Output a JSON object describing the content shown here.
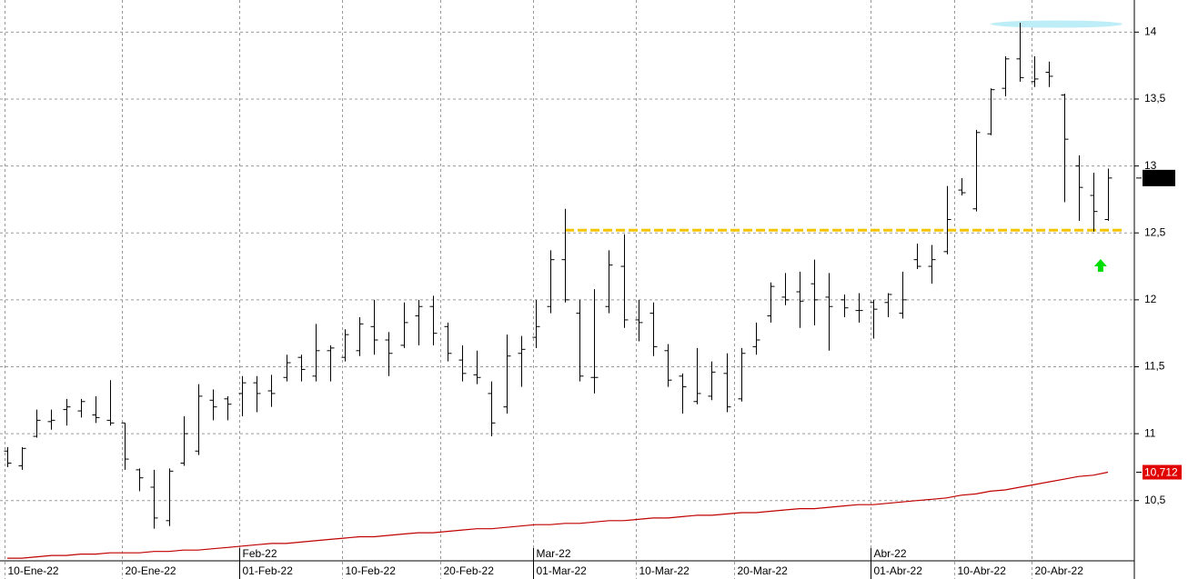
{
  "chart_data": {
    "type": "ohlc",
    "xlim": [
      -0.5,
      76.8
    ],
    "ylim": [
      10.05,
      14.24
    ],
    "yticks": [
      {
        "value": 10.5,
        "label": "10,5"
      },
      11,
      {
        "value": 11.5,
        "label": "11,5"
      },
      12,
      {
        "value": 12.5,
        "label": "12,5"
      },
      13,
      {
        "value": 13.5,
        "label": "13,5"
      },
      14
    ],
    "xticks": [
      {
        "value": 0,
        "label": "10-Ene-22"
      },
      {
        "value": 8,
        "label": "20-Ene-22"
      },
      {
        "value": 16,
        "label": "01-Feb-22"
      },
      {
        "value": 23,
        "label": "10-Feb-22"
      },
      {
        "value": 29.7,
        "label": "20-Feb-22"
      },
      {
        "value": 36,
        "label": "01-Mar-22"
      },
      {
        "value": 43,
        "label": "10-Mar-22"
      },
      {
        "value": 49.7,
        "label": "20-Mar-22"
      },
      {
        "value": 59,
        "label": "01-Abr-22"
      },
      {
        "value": 64.7,
        "label": "10-Abr-22"
      },
      {
        "value": 70,
        "label": "20-Abr-22"
      }
    ],
    "month_ticks": [
      {
        "value": 16,
        "label": "Feb-22"
      },
      {
        "value": 36,
        "label": "Mar-22"
      },
      {
        "value": 59,
        "label": "Abr-22"
      }
    ],
    "grid": true,
    "ohlc": {
      "color": "#000000",
      "open": [
        10.87,
        10.76,
        10.98,
        11.09,
        11.18,
        11.17,
        11.14,
        11.1,
        11.08,
        10.73,
        10.6,
        10.35,
        10.78,
        10.87,
        11.25,
        11.26,
        11.3,
        11.38,
        11.32,
        11.42,
        11.57,
        11.43,
        11.62,
        11.57,
        11.62,
        11.8,
        11.7,
        11.66,
        11.88,
        11.95,
        11.8,
        11.55,
        11.44,
        11.3,
        11.2,
        11.6,
        11.72,
        11.95,
        12.3,
        11.9,
        11.42,
        11.95,
        12.25,
        11.85,
        11.9,
        11.62,
        11.43,
        11.24,
        11.28,
        11.45,
        11.26,
        11.65,
        11.88,
        12.02,
        12.06,
        12.12,
        12.02,
        12.0,
        11.92,
        11.98,
        11.98,
        11.9,
        12.3,
        12.25,
        12.36,
        12.82,
        12.68,
        13.24,
        13.58,
        13.8,
        13.63,
        13.7,
        13.53,
        13.0,
        12.78,
        12.6
      ],
      "high": [
        10.9,
        10.9,
        11.18,
        11.18,
        11.26,
        11.26,
        11.28,
        11.4,
        11.08,
        10.74,
        10.73,
        10.74,
        11.13,
        11.37,
        11.33,
        11.28,
        11.43,
        11.43,
        11.44,
        11.59,
        11.59,
        11.82,
        11.66,
        11.78,
        11.87,
        12.0,
        11.76,
        11.98,
        12.0,
        12.03,
        11.83,
        11.66,
        11.62,
        11.39,
        11.74,
        11.73,
        12.0,
        12.37,
        12.68,
        12.0,
        12.08,
        12.37,
        12.49,
        12.0,
        11.98,
        11.67,
        11.45,
        11.64,
        11.54,
        11.6,
        11.64,
        11.83,
        12.13,
        12.2,
        12.21,
        12.3,
        12.2,
        12.04,
        12.05,
        12.0,
        12.05,
        12.21,
        12.42,
        12.41,
        12.85,
        12.91,
        13.27,
        13.58,
        13.82,
        14.07,
        13.82,
        13.78,
        13.54,
        13.08,
        12.95,
        12.98
      ],
      "low": [
        10.75,
        10.73,
        10.97,
        11.03,
        11.06,
        11.12,
        11.08,
        11.06,
        10.73,
        10.57,
        10.29,
        10.31,
        10.76,
        10.84,
        11.1,
        11.1,
        11.13,
        11.16,
        11.2,
        11.39,
        11.39,
        11.39,
        11.39,
        11.54,
        11.58,
        11.59,
        11.43,
        11.64,
        11.66,
        11.66,
        11.54,
        11.39,
        11.37,
        10.98,
        11.15,
        11.35,
        11.64,
        11.9,
        11.98,
        11.39,
        11.3,
        11.9,
        11.79,
        11.69,
        11.58,
        11.35,
        11.15,
        11.22,
        11.25,
        11.16,
        11.24,
        11.59,
        11.83,
        11.96,
        11.79,
        11.81,
        11.62,
        11.87,
        11.83,
        11.71,
        11.87,
        11.86,
        12.23,
        12.12,
        12.34,
        12.78,
        12.66,
        13.23,
        13.52,
        13.63,
        13.59,
        13.59,
        12.73,
        12.59,
        12.51,
        12.59
      ],
      "close": [
        10.78,
        10.89,
        11.1,
        11.1,
        11.2,
        11.24,
        11.12,
        11.08,
        10.81,
        10.67,
        10.37,
        10.72,
        11.0,
        11.28,
        11.2,
        11.22,
        11.38,
        11.3,
        11.3,
        11.53,
        11.48,
        11.62,
        11.64,
        11.74,
        11.82,
        11.7,
        11.6,
        11.83,
        11.95,
        11.75,
        11.6,
        11.45,
        11.42,
        11.08,
        11.58,
        11.63,
        11.8,
        12.3,
        12.0,
        11.43,
        11.42,
        12.26,
        11.85,
        11.83,
        11.65,
        11.4,
        11.35,
        11.3,
        11.46,
        11.2,
        11.6,
        11.7,
        12.1,
        12.0,
        11.99,
        12.0,
        11.95,
        11.94,
        11.92,
        11.93,
        12.04,
        12.0,
        12.25,
        12.3,
        12.6,
        12.8,
        13.25,
        13.57,
        13.8,
        13.66,
        13.65,
        13.67,
        13.2,
        12.84,
        12.66,
        12.91
      ]
    },
    "moving_average": {
      "color": "#c00000",
      "values": [
        10.07,
        10.07,
        10.08,
        10.09,
        10.09,
        10.1,
        10.1,
        10.11,
        10.11,
        10.11,
        10.12,
        10.12,
        10.13,
        10.13,
        10.14,
        10.15,
        10.16,
        10.17,
        10.18,
        10.18,
        10.19,
        10.2,
        10.21,
        10.22,
        10.23,
        10.23,
        10.24,
        10.25,
        10.26,
        10.26,
        10.27,
        10.28,
        10.29,
        10.29,
        10.3,
        10.31,
        10.32,
        10.32,
        10.33,
        10.33,
        10.34,
        10.35,
        10.35,
        10.36,
        10.37,
        10.37,
        10.38,
        10.39,
        10.39,
        10.4,
        10.41,
        10.41,
        10.42,
        10.43,
        10.44,
        10.44,
        10.45,
        10.46,
        10.47,
        10.47,
        10.48,
        10.49,
        10.5,
        10.51,
        10.52,
        10.54,
        10.55,
        10.57,
        10.58,
        10.6,
        10.62,
        10.64,
        10.66,
        10.68,
        10.69,
        10.712
      ],
      "last_label": "10,712"
    },
    "support_line": {
      "value": 12.52,
      "x": [
        38,
        76
      ],
      "color": "#f5c400"
    },
    "highlight": {
      "value": 14.06,
      "x": [
        67,
        76
      ],
      "color": "#bdeef7"
    },
    "signal_arrow": {
      "x": 74.5,
      "value": 12.25,
      "color": "#00dd00"
    }
  }
}
